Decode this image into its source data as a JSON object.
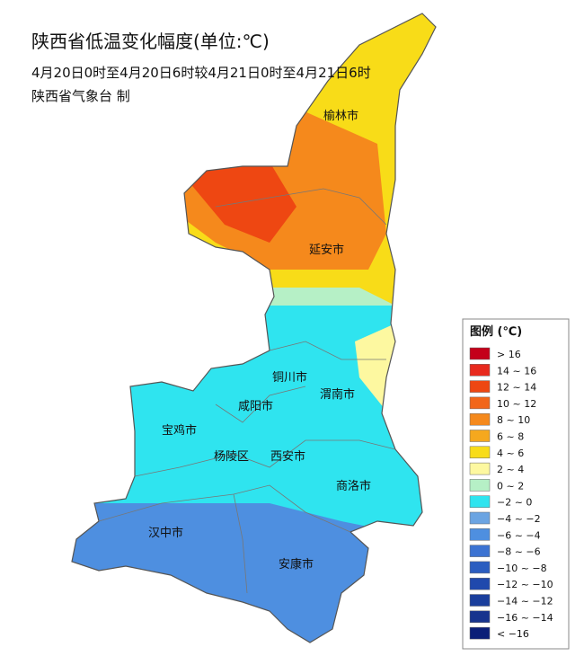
{
  "title": "陕西省低温变化幅度(单位:℃)",
  "subtitle": "4月20日0时至4月20日6时较4月21日0时至4月21日6时",
  "source": "陕西省气象台 制",
  "cities": [
    "榆林市",
    "延安市",
    "铜川市",
    "渭南市",
    "咸阳市",
    "宝鸡市",
    "杨陵区",
    "西安市",
    "商洛市",
    "汉中市",
    "安康市"
  ],
  "legend": {
    "title": "图例 (℃)",
    "items": [
      {
        "label": "> 16",
        "color": "#c4001a"
      },
      {
        "label": "14 ~ 16",
        "color": "#e82a1e"
      },
      {
        "label": "12 ~ 14",
        "color": "#ee4712"
      },
      {
        "label": "10 ~ 12",
        "color": "#f2661a"
      },
      {
        "label": "8 ~ 10",
        "color": "#f5891c"
      },
      {
        "label": "6 ~ 8",
        "color": "#f5a81e"
      },
      {
        "label": "4 ~ 6",
        "color": "#f8dc18"
      },
      {
        "label": "2 ~ 4",
        "color": "#fdf8a0"
      },
      {
        "label": "0 ~ 2",
        "color": "#b6f0c6"
      },
      {
        "label": "−2 ~ 0",
        "color": "#2fe4ef"
      },
      {
        "label": "−4 ~ −2",
        "color": "#6ba4e2"
      },
      {
        "label": "−6 ~ −4",
        "color": "#4e8fe0"
      },
      {
        "label": "−8 ~ −6",
        "color": "#3c73d2"
      },
      {
        "label": "−10 ~ −8",
        "color": "#2b5dc0"
      },
      {
        "label": "−12 ~ −10",
        "color": "#2049ad"
      },
      {
        "label": "−14 ~ −12",
        "color": "#1a3e9c"
      },
      {
        "label": "−16 ~ −14",
        "color": "#17348e"
      },
      {
        "label": "< −16",
        "color": "#0a1e78"
      }
    ]
  }
}
